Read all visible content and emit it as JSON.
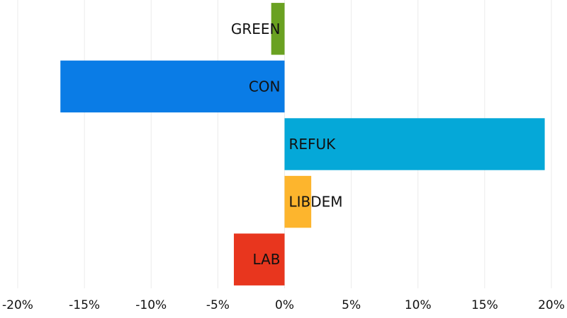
{
  "chart_data": {
    "type": "bar",
    "orientation": "horizontal",
    "categories": [
      "GREEN",
      "CON",
      "REFUK",
      "LIBDEM",
      "LAB"
    ],
    "values": [
      -1.0,
      -16.8,
      19.5,
      2.0,
      -3.8
    ],
    "colors": [
      "#6aa121",
      "#0a7ce6",
      "#05a8d8",
      "#fdb52d",
      "#e8361e"
    ],
    "xlim": [
      -20,
      20
    ],
    "xticks": [
      -20,
      -15,
      -10,
      -5,
      0,
      5,
      10,
      15,
      20
    ],
    "xtick_labels": [
      "-20%",
      "-15%",
      "-10%",
      "-5%",
      "0%",
      "5%",
      "10%",
      "15%",
      "20%"
    ],
    "grid": true,
    "legend": false,
    "title": "",
    "xlabel": "",
    "ylabel": ""
  }
}
